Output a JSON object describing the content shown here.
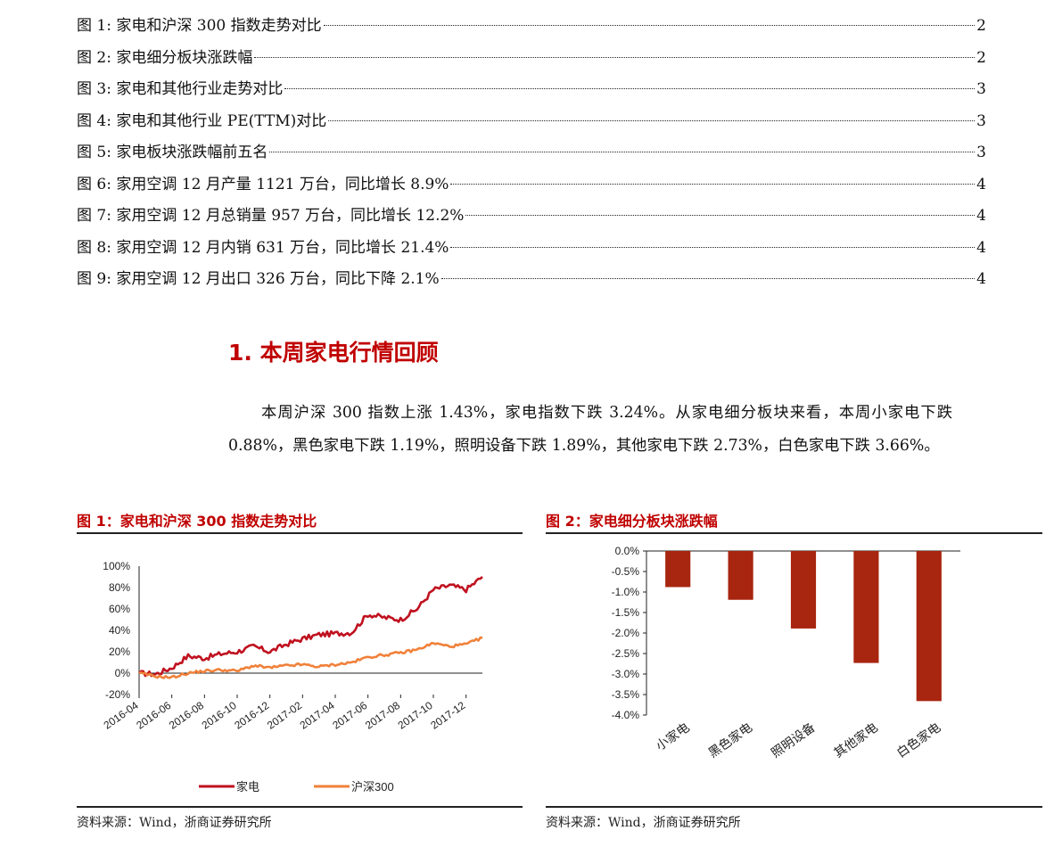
{
  "toc": [
    {
      "label": "图 1:  家电和沪深 300 指数走势对比",
      "page": "2"
    },
    {
      "label": "图 2:  家电细分板块涨跌幅",
      "page": "2"
    },
    {
      "label": "图 3:  家电和其他行业走势对比",
      "page": "3"
    },
    {
      "label": "图 4:  家电和其他行业 PE(TTM)对比",
      "page": "3"
    },
    {
      "label": "图 5:  家电板块涨跌幅前五名",
      "page": "3"
    },
    {
      "label": "图 6:  家用空调 12 月产量 1121 万台，同比增长 8.9%",
      "page": "4"
    },
    {
      "label": "图 7:  家用空调 12 月总销量 957 万台，同比增长 12.2%",
      "page": "4"
    },
    {
      "label": "图 8:  家用空调 12 月内销 631 万台，同比增长 21.4%",
      "page": "4"
    },
    {
      "label": "图 9:  家用空调 12 月出口 326 万台，同比下降 2.1%",
      "page": "4"
    }
  ],
  "section": {
    "title": "1. 本周家电行情回顾",
    "paragraph": "本周沪深 300 指数上涨 1.43%，家电指数下跌 3.24%。从家电细分板块来看，本周小家电下跌 0.88%，黑色家电下跌 1.19%，照明设备下跌 1.89%，其他家电下跌 2.73%，白色家电下跌 3.66%。"
  },
  "figures": {
    "fig1_title": "图 1：家电和沪深 300 指数走势对比",
    "fig2_title": "图 2：家电细分板块涨跌幅",
    "source1": "资料来源：Wind，浙商证券研究所",
    "source2": "资料来源：Wind，浙商证券研究所"
  },
  "chart_data": [
    {
      "type": "line",
      "x": [
        "2016-04",
        "2016-05",
        "2016-06",
        "2016-07",
        "2016-08",
        "2016-09",
        "2016-10",
        "2016-11",
        "2016-12",
        "2017-01",
        "2017-02",
        "2017-03",
        "2017-04",
        "2017-05",
        "2017-06",
        "2017-07",
        "2017-08",
        "2017-09",
        "2017-10",
        "2017-11",
        "2017-12",
        "2018-01"
      ],
      "x_ticks": [
        "2016-04",
        "2016-06",
        "2016-08",
        "2016-10",
        "2016-12",
        "2017-02",
        "2017-04",
        "2017-06",
        "2017-08",
        "2017-10",
        "2017-12"
      ],
      "y_ticks": [
        "100%",
        "80%",
        "60%",
        "40%",
        "20%",
        "0%",
        "-20%"
      ],
      "ylim": [
        -20,
        100
      ],
      "series": [
        {
          "name": "家电",
          "color": "#c0111f",
          "values": [
            0,
            -1,
            5,
            16,
            14,
            18,
            20,
            25,
            20,
            27,
            32,
            36,
            37,
            38,
            55,
            52,
            50,
            60,
            78,
            82,
            78,
            90
          ]
        },
        {
          "name": "沪深300",
          "color": "#f0813a",
          "values": [
            0,
            -3,
            -4,
            0,
            2,
            3,
            2,
            7,
            5,
            7,
            8,
            6,
            8,
            10,
            15,
            17,
            19,
            22,
            28,
            25,
            27,
            33
          ]
        }
      ]
    },
    {
      "type": "bar",
      "categories": [
        "小家电",
        "黑色家电",
        "照明设备",
        "其他家电",
        "白色家电"
      ],
      "values": [
        -0.88,
        -1.19,
        -1.89,
        -2.73,
        -3.66
      ],
      "y_ticks": [
        "0.0%",
        "-0.5%",
        "-1.0%",
        "-1.5%",
        "-2.0%",
        "-2.5%",
        "-3.0%",
        "-3.5%",
        "-4.0%"
      ],
      "ylim": [
        -4.0,
        0.0
      ],
      "color": "#a8250f"
    }
  ]
}
